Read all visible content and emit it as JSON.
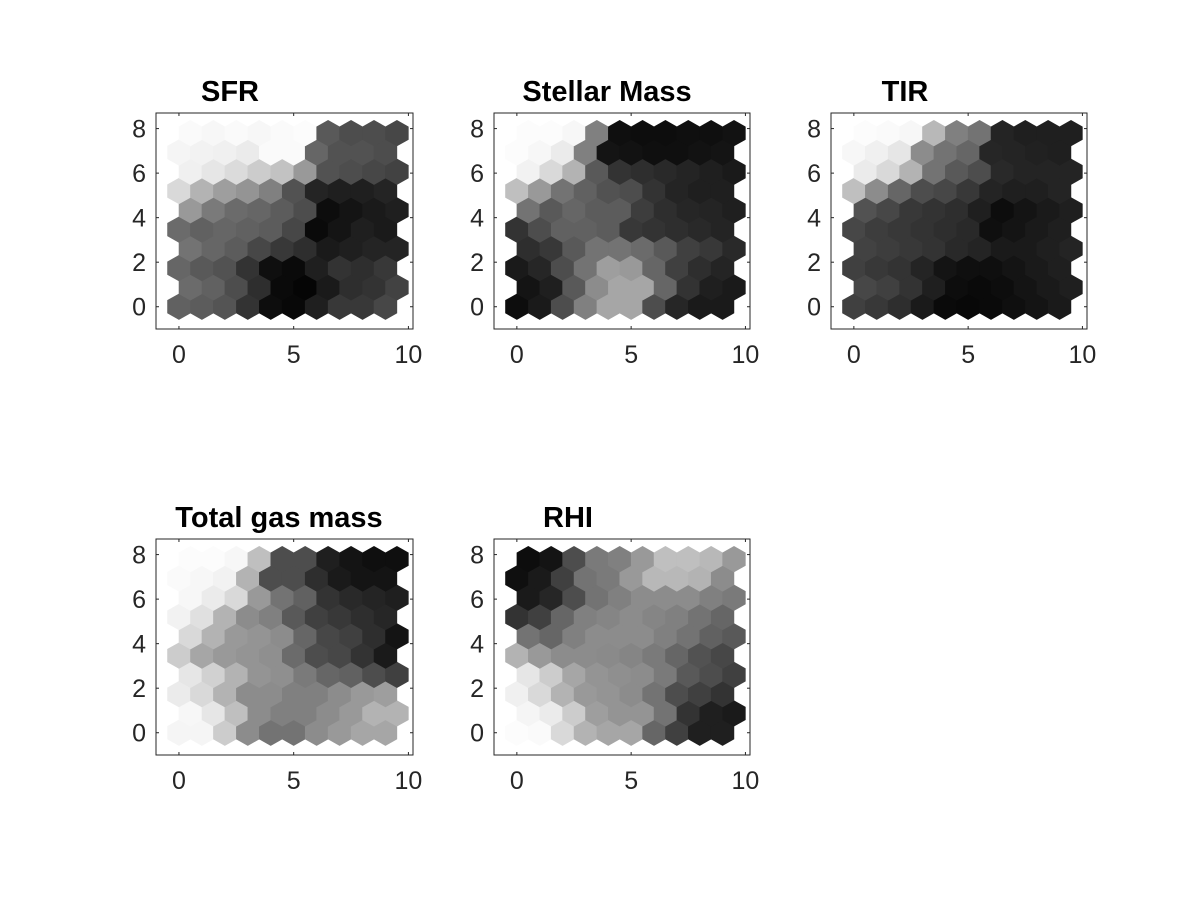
{
  "figure": {
    "background": "#ffffff"
  },
  "chart_data": [
    {
      "type": "heatmap",
      "title": "SFR",
      "xlim": [
        -1,
        10.2
      ],
      "ylim": [
        -1,
        8.7
      ],
      "xticks": [
        0,
        5,
        10
      ],
      "yticks": [
        0,
        2,
        4,
        6,
        8
      ],
      "xticklabels": [
        "0",
        "5",
        "10"
      ],
      "yticklabels": [
        "0",
        "2",
        "4",
        "6",
        "8"
      ],
      "colormap": "gray",
      "grid": "hexagonal",
      "nrows": 10,
      "ncols": 10,
      "values": [
        [
          0.38,
          0.36,
          0.33,
          0.2,
          0.05,
          0.03,
          0.12,
          0.22,
          0.22,
          0.28
        ],
        [
          0.42,
          0.38,
          0.3,
          0.18,
          0.04,
          0.02,
          0.1,
          0.18,
          0.2,
          0.26
        ],
        [
          0.4,
          0.35,
          0.32,
          0.2,
          0.06,
          0.04,
          0.12,
          0.2,
          0.18,
          0.22
        ],
        [
          0.45,
          0.4,
          0.36,
          0.28,
          0.22,
          0.18,
          0.1,
          0.12,
          0.14,
          0.14
        ],
        [
          0.42,
          0.38,
          0.4,
          0.38,
          0.36,
          0.28,
          0.04,
          0.08,
          0.12,
          0.1
        ],
        [
          0.6,
          0.48,
          0.42,
          0.4,
          0.36,
          0.3,
          0.05,
          0.08,
          0.1,
          0.12
        ],
        [
          0.85,
          0.7,
          0.62,
          0.58,
          0.5,
          0.32,
          0.14,
          0.12,
          0.12,
          0.14
        ],
        [
          0.94,
          0.9,
          0.86,
          0.8,
          0.76,
          0.6,
          0.32,
          0.3,
          0.28,
          0.26
        ],
        [
          0.96,
          0.95,
          0.94,
          0.92,
          0.98,
          0.98,
          0.4,
          0.32,
          0.32,
          0.3
        ],
        [
          0.98,
          0.97,
          0.98,
          0.97,
          0.98,
          0.99,
          0.35,
          0.3,
          0.3,
          0.28
        ]
      ]
    },
    {
      "type": "heatmap",
      "title": "Stellar Mass",
      "xlim": [
        -1,
        10.2
      ],
      "ylim": [
        -1,
        8.7
      ],
      "xticks": [
        0,
        5,
        10
      ],
      "yticks": [
        0,
        2,
        4,
        6,
        8
      ],
      "xticklabels": [
        "0",
        "5",
        "10"
      ],
      "yticklabels": [
        "0",
        "2",
        "4",
        "6",
        "8"
      ],
      "colormap": "gray",
      "grid": "hexagonal",
      "nrows": 10,
      "ncols": 10,
      "values": [
        [
          0.05,
          0.1,
          0.3,
          0.5,
          0.65,
          0.65,
          0.3,
          0.15,
          0.1,
          0.1
        ],
        [
          0.08,
          0.12,
          0.35,
          0.55,
          0.65,
          0.65,
          0.4,
          0.2,
          0.12,
          0.1
        ],
        [
          0.1,
          0.15,
          0.3,
          0.45,
          0.62,
          0.6,
          0.4,
          0.25,
          0.18,
          0.14
        ],
        [
          0.18,
          0.22,
          0.35,
          0.45,
          0.45,
          0.42,
          0.35,
          0.25,
          0.22,
          0.16
        ],
        [
          0.2,
          0.3,
          0.38,
          0.38,
          0.36,
          0.22,
          0.2,
          0.18,
          0.16,
          0.14
        ],
        [
          0.45,
          0.35,
          0.4,
          0.36,
          0.36,
          0.24,
          0.18,
          0.15,
          0.14,
          0.12
        ],
        [
          0.75,
          0.6,
          0.45,
          0.38,
          0.32,
          0.3,
          0.2,
          0.14,
          0.12,
          0.12
        ],
        [
          0.95,
          0.85,
          0.7,
          0.35,
          0.2,
          0.18,
          0.16,
          0.14,
          0.12,
          0.1
        ],
        [
          0.99,
          0.97,
          0.92,
          0.5,
          0.08,
          0.07,
          0.06,
          0.06,
          0.07,
          0.08
        ],
        [
          0.99,
          0.99,
          0.97,
          0.5,
          0.06,
          0.05,
          0.05,
          0.06,
          0.06,
          0.07
        ]
      ]
    },
    {
      "type": "heatmap",
      "title": "TIR",
      "xlim": [
        -1,
        10.2
      ],
      "ylim": [
        -1,
        8.7
      ],
      "xticks": [
        0,
        5,
        10
      ],
      "yticks": [
        0,
        2,
        4,
        6,
        8
      ],
      "xticklabels": [
        "0",
        "5",
        "10"
      ],
      "yticklabels": [
        "0",
        "2",
        "4",
        "6",
        "8"
      ],
      "colormap": "gray",
      "grid": "hexagonal",
      "nrows": 10,
      "ncols": 10,
      "values": [
        [
          0.25,
          0.22,
          0.18,
          0.1,
          0.04,
          0.03,
          0.04,
          0.06,
          0.08,
          0.1
        ],
        [
          0.28,
          0.25,
          0.2,
          0.12,
          0.05,
          0.04,
          0.05,
          0.08,
          0.1,
          0.12
        ],
        [
          0.25,
          0.22,
          0.2,
          0.14,
          0.08,
          0.06,
          0.06,
          0.08,
          0.1,
          0.12
        ],
        [
          0.26,
          0.24,
          0.22,
          0.2,
          0.16,
          0.14,
          0.1,
          0.1,
          0.12,
          0.14
        ],
        [
          0.28,
          0.24,
          0.22,
          0.2,
          0.18,
          0.16,
          0.06,
          0.08,
          0.1,
          0.12
        ],
        [
          0.32,
          0.28,
          0.22,
          0.2,
          0.18,
          0.12,
          0.05,
          0.08,
          0.1,
          0.12
        ],
        [
          0.75,
          0.55,
          0.4,
          0.3,
          0.28,
          0.22,
          0.14,
          0.12,
          0.12,
          0.14
        ],
        [
          0.92,
          0.85,
          0.7,
          0.45,
          0.35,
          0.3,
          0.16,
          0.14,
          0.14,
          0.14
        ],
        [
          0.97,
          0.94,
          0.9,
          0.55,
          0.45,
          0.4,
          0.15,
          0.14,
          0.13,
          0.12
        ],
        [
          0.99,
          0.98,
          0.97,
          0.72,
          0.5,
          0.45,
          0.14,
          0.12,
          0.12,
          0.12
        ]
      ]
    },
    {
      "type": "heatmap",
      "title": "Total gas mass",
      "xlim": [
        -1,
        10.2
      ],
      "ylim": [
        -1,
        8.7
      ],
      "xticks": [
        0,
        5,
        10
      ],
      "yticks": [
        0,
        2,
        4,
        6,
        8
      ],
      "xticklabels": [
        "0",
        "5",
        "10"
      ],
      "yticklabels": [
        "0",
        "2",
        "4",
        "6",
        "8"
      ],
      "colormap": "gray",
      "grid": "hexagonal",
      "nrows": 10,
      "ncols": 10,
      "values": [
        [
          0.96,
          0.96,
          0.8,
          0.55,
          0.45,
          0.45,
          0.55,
          0.6,
          0.65,
          0.65
        ],
        [
          0.97,
          0.9,
          0.75,
          0.55,
          0.5,
          0.5,
          0.55,
          0.6,
          0.7,
          0.7
        ],
        [
          0.92,
          0.85,
          0.7,
          0.55,
          0.55,
          0.5,
          0.5,
          0.55,
          0.6,
          0.62
        ],
        [
          0.9,
          0.82,
          0.7,
          0.58,
          0.56,
          0.48,
          0.4,
          0.38,
          0.3,
          0.25
        ],
        [
          0.8,
          0.65,
          0.6,
          0.58,
          0.56,
          0.42,
          0.3,
          0.28,
          0.2,
          0.1
        ],
        [
          0.85,
          0.7,
          0.6,
          0.58,
          0.55,
          0.4,
          0.28,
          0.25,
          0.18,
          0.08
        ],
        [
          0.95,
          0.88,
          0.7,
          0.55,
          0.5,
          0.35,
          0.25,
          0.22,
          0.18,
          0.15
        ],
        [
          0.97,
          0.92,
          0.85,
          0.6,
          0.45,
          0.38,
          0.2,
          0.16,
          0.14,
          0.12
        ],
        [
          0.98,
          0.97,
          0.95,
          0.7,
          0.3,
          0.3,
          0.18,
          0.1,
          0.08,
          0.08
        ],
        [
          0.99,
          0.99,
          0.97,
          0.75,
          0.3,
          0.3,
          0.12,
          0.08,
          0.06,
          0.06
        ]
      ]
    },
    {
      "type": "heatmap",
      "title": "RHI",
      "xlim": [
        -1,
        10.2
      ],
      "ylim": [
        -1,
        8.7
      ],
      "xticks": [
        0,
        5,
        10
      ],
      "yticks": [
        0,
        2,
        4,
        6,
        8
      ],
      "xticklabels": [
        "0",
        "5",
        "10"
      ],
      "yticklabels": [
        "0",
        "2",
        "4",
        "6",
        "8"
      ],
      "colormap": "gray",
      "grid": "hexagonal",
      "nrows": 10,
      "ncols": 10,
      "values": [
        [
          0.99,
          0.98,
          0.85,
          0.7,
          0.65,
          0.65,
          0.4,
          0.25,
          0.12,
          0.12
        ],
        [
          0.96,
          0.92,
          0.8,
          0.62,
          0.58,
          0.58,
          0.45,
          0.2,
          0.12,
          0.1
        ],
        [
          0.94,
          0.85,
          0.7,
          0.6,
          0.58,
          0.55,
          0.45,
          0.3,
          0.25,
          0.2
        ],
        [
          0.9,
          0.8,
          0.65,
          0.58,
          0.56,
          0.55,
          0.48,
          0.35,
          0.3,
          0.25
        ],
        [
          0.7,
          0.6,
          0.55,
          0.55,
          0.54,
          0.52,
          0.48,
          0.4,
          0.32,
          0.28
        ],
        [
          0.45,
          0.4,
          0.5,
          0.55,
          0.55,
          0.55,
          0.5,
          0.45,
          0.38,
          0.35
        ],
        [
          0.2,
          0.25,
          0.4,
          0.5,
          0.52,
          0.55,
          0.52,
          0.5,
          0.45,
          0.4
        ],
        [
          0.1,
          0.15,
          0.3,
          0.45,
          0.5,
          0.55,
          0.55,
          0.55,
          0.5,
          0.48
        ],
        [
          0.06,
          0.1,
          0.25,
          0.45,
          0.48,
          0.6,
          0.72,
          0.72,
          0.7,
          0.55
        ],
        [
          0.05,
          0.08,
          0.3,
          0.48,
          0.5,
          0.6,
          0.75,
          0.75,
          0.72,
          0.6
        ]
      ]
    }
  ]
}
